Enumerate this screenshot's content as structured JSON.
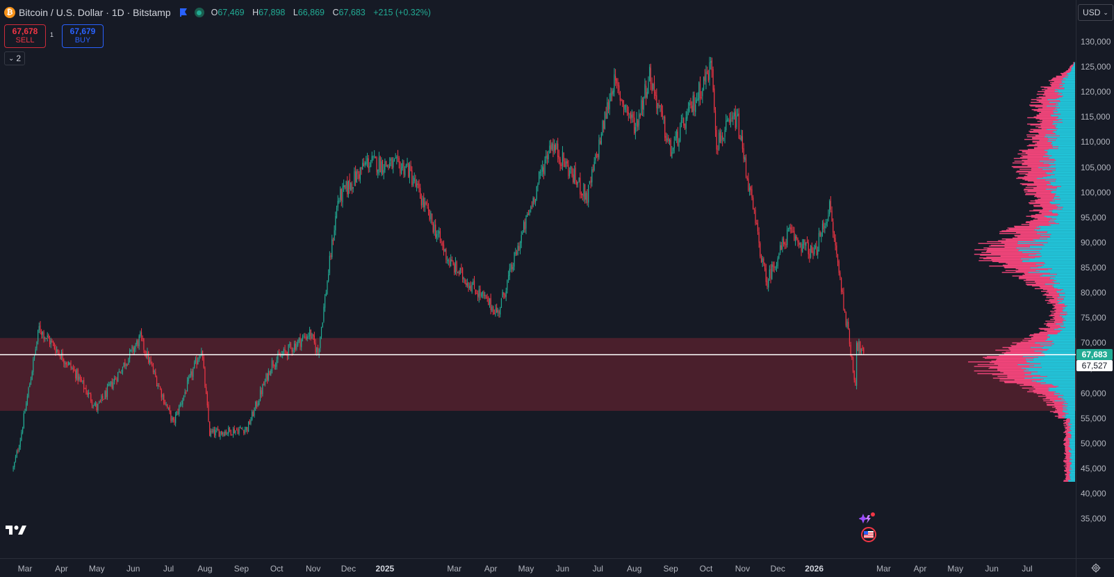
{
  "legend": {
    "coin_glyph": "₿",
    "symbol": "Bitcoin / U.S. Dollar · 1D · Bitstamp",
    "ohlc": {
      "o_label": "O",
      "o": "67,469",
      "h_label": "H",
      "h": "67,898",
      "l_label": "L",
      "l": "66,869",
      "c_label": "C",
      "c": "67,683",
      "change": "+215 (+0.32%)"
    },
    "colors": {
      "up": "#22ab94",
      "down": "#f23645",
      "flag": "#2962ff"
    }
  },
  "trade": {
    "sell_price": "67,678",
    "sell_label": "SELL",
    "spread": "1",
    "buy_price": "67,679",
    "buy_label": "BUY"
  },
  "indicator_toggle": "2",
  "currency": "USD",
  "price_axis": {
    "labels": [
      "130,000",
      "125,000",
      "120,000",
      "115,000",
      "110,000",
      "105,000",
      "100,000",
      "95,000",
      "90,000",
      "85,000",
      "80,000",
      "75,000",
      "70,000",
      "65,000",
      "60,000",
      "55,000",
      "50,000",
      "45,000",
      "40,000",
      "35,000"
    ],
    "last_price": "67,683",
    "last_price_color": "#22ab94",
    "crosshair_price": "67,527"
  },
  "time_axis": {
    "labels": [
      {
        "text": "Mar",
        "year": false
      },
      {
        "text": "Apr",
        "year": false
      },
      {
        "text": "May",
        "year": false
      },
      {
        "text": "Jun",
        "year": false
      },
      {
        "text": "Jul",
        "year": false
      },
      {
        "text": "Aug",
        "year": false
      },
      {
        "text": "Sep",
        "year": false
      },
      {
        "text": "Oct",
        "year": false
      },
      {
        "text": "Nov",
        "year": false
      },
      {
        "text": "Dec",
        "year": false
      },
      {
        "text": "2025",
        "year": true
      },
      {
        "text": "Mar",
        "year": false
      },
      {
        "text": "Apr",
        "year": false
      },
      {
        "text": "May",
        "year": false
      },
      {
        "text": "Jun",
        "year": false
      },
      {
        "text": "Jul",
        "year": false
      },
      {
        "text": "Aug",
        "year": false
      },
      {
        "text": "Sep",
        "year": false
      },
      {
        "text": "Oct",
        "year": false
      },
      {
        "text": "Nov",
        "year": false
      },
      {
        "text": "Dec",
        "year": false
      },
      {
        "text": "2026",
        "year": true
      },
      {
        "text": "Mar",
        "year": false
      },
      {
        "text": "Apr",
        "year": false
      },
      {
        "text": "May",
        "year": false
      },
      {
        "text": "Jun",
        "year": false
      },
      {
        "text": "Jul",
        "year": false
      }
    ]
  },
  "chart_data": {
    "type": "candlestick",
    "interval": "1D",
    "y_range": [
      31000,
      133000
    ],
    "price_line": 67683,
    "support_zone": [
      56500,
      71000
    ],
    "support_zone_color": "#4a1f2c",
    "volume_profile": {
      "up_color": "#22c3d8",
      "down_color": "#f0457a"
    },
    "path_keypoints": [
      {
        "date": "2024-02-20",
        "price": 45000
      },
      {
        "date": "2024-02-26",
        "price": 51000
      },
      {
        "date": "2024-03-13",
        "price": 73000
      },
      {
        "date": "2024-04-13",
        "price": 64000
      },
      {
        "date": "2024-05-01",
        "price": 57000
      },
      {
        "date": "2024-06-07",
        "price": 71000
      },
      {
        "date": "2024-07-05",
        "price": 54000
      },
      {
        "date": "2024-07-29",
        "price": 69000
      },
      {
        "date": "2024-08-05",
        "price": 52000
      },
      {
        "date": "2024-09-06",
        "price": 53000
      },
      {
        "date": "2024-09-27",
        "price": 66000
      },
      {
        "date": "2024-10-29",
        "price": 72000
      },
      {
        "date": "2024-11-05",
        "price": 68000
      },
      {
        "date": "2024-11-22",
        "price": 98500
      },
      {
        "date": "2024-12-17",
        "price": 106000
      },
      {
        "date": "2025-01-20",
        "price": 105000
      },
      {
        "date": "2025-02-25",
        "price": 86000
      },
      {
        "date": "2025-04-07",
        "price": 76000
      },
      {
        "date": "2025-05-22",
        "price": 110000
      },
      {
        "date": "2025-06-22",
        "price": 99000
      },
      {
        "date": "2025-07-14",
        "price": 122000
      },
      {
        "date": "2025-08-02",
        "price": 113000
      },
      {
        "date": "2025-08-14",
        "price": 123500
      },
      {
        "date": "2025-09-01",
        "price": 108000
      },
      {
        "date": "2025-10-06",
        "price": 125500
      },
      {
        "date": "2025-10-10",
        "price": 110000
      },
      {
        "date": "2025-10-27",
        "price": 115000
      },
      {
        "date": "2025-11-21",
        "price": 82000
      },
      {
        "date": "2025-12-10",
        "price": 92000
      },
      {
        "date": "2026-01-01",
        "price": 87500
      },
      {
        "date": "2026-01-14",
        "price": 97000
      },
      {
        "date": "2026-02-05",
        "price": 62000
      },
      {
        "date": "2026-02-06",
        "price": 70000
      },
      {
        "date": "2026-02-12",
        "price": 67683
      }
    ]
  }
}
